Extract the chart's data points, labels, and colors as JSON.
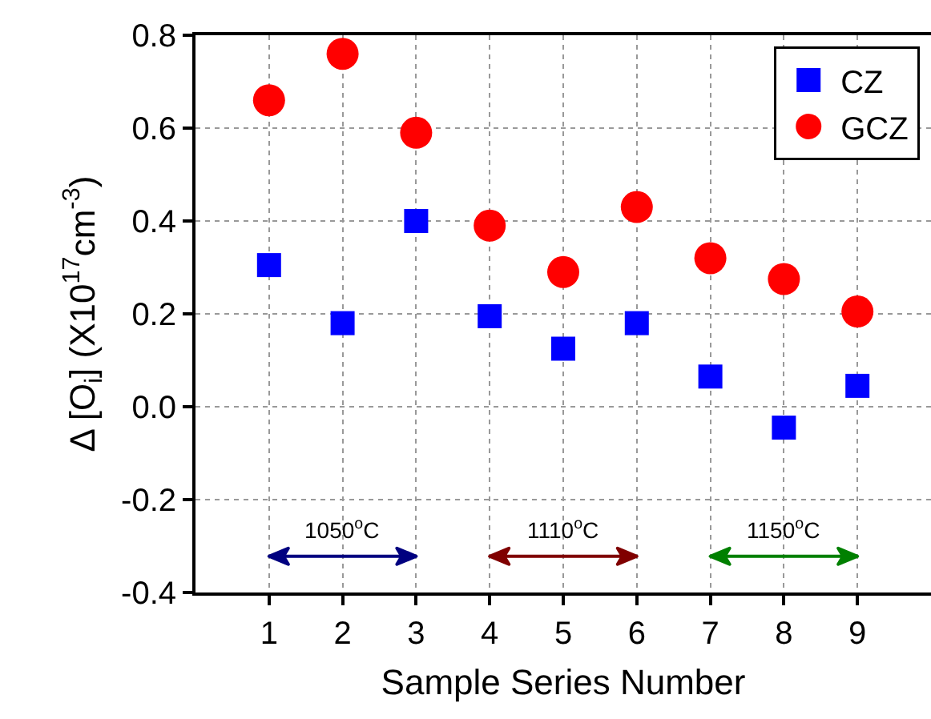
{
  "chart_data": {
    "type": "scatter",
    "xlabel": "Sample Series Number",
    "ylabel": "Δ [O$_{i}$] (X10$^{17}$cm$^{-3}$)",
    "x": [
      1,
      2,
      3,
      4,
      5,
      6,
      7,
      8,
      9
    ],
    "series": [
      {
        "name": "CZ",
        "color": "#0000ff",
        "marker": "square",
        "values": [
          0.305,
          0.18,
          0.4,
          0.195,
          0.125,
          0.18,
          0.065,
          -0.045,
          0.045
        ]
      },
      {
        "name": "GCZ",
        "color": "#ff0000",
        "marker": "circle",
        "values": [
          0.66,
          0.76,
          0.59,
          0.39,
          0.29,
          0.43,
          0.32,
          0.275,
          0.205
        ]
      }
    ],
    "xlim": [
      0,
      10
    ],
    "xticks": [
      1,
      2,
      3,
      4,
      5,
      6,
      7,
      8,
      9
    ],
    "ylim": [
      -0.4,
      0.8
    ],
    "yticks": [
      -0.4,
      -0.2,
      {
        "value": 0,
        "label": "0.0"
      },
      0.2,
      0.4,
      0.6,
      0.8
    ],
    "annotations": [
      "1050$^{o}$C",
      "1110$^{o}$C",
      "1150$^{o}$C"
    ],
    "grid": true,
    "legend": "top right"
  }
}
